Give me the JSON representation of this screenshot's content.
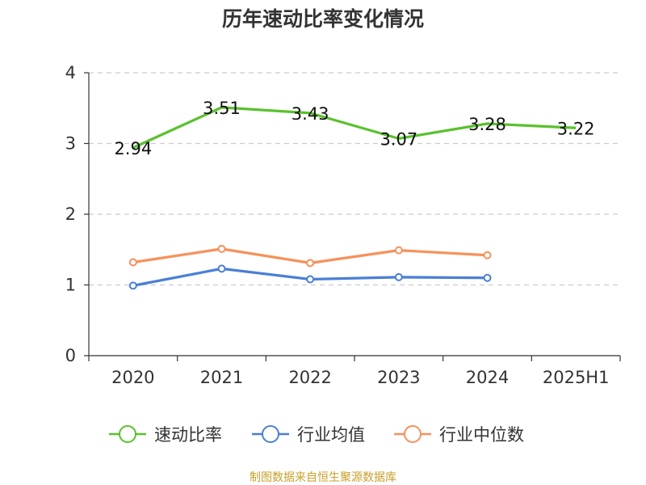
{
  "chart_data": {
    "type": "line",
    "title": "历年速动比率变化情况",
    "categories": [
      "2020",
      "2021",
      "2022",
      "2023",
      "2024",
      "2025H1"
    ],
    "ylim": [
      0,
      4
    ],
    "yticks": [
      "0",
      "1",
      "2",
      "3",
      "4"
    ],
    "grid": true,
    "legend_position": "bottom",
    "series": [
      {
        "name": "速动比率",
        "color": "#5ac12d",
        "values": [
          2.94,
          3.51,
          3.43,
          3.07,
          3.28,
          3.22
        ],
        "labels": [
          "2.94",
          "3.51",
          "3.43",
          "3.07",
          "3.28",
          "3.22"
        ]
      },
      {
        "name": "行业均值",
        "color": "#4a7fd6",
        "values": [
          0.99,
          1.23,
          1.08,
          1.11,
          1.1,
          null
        ]
      },
      {
        "name": "行业中位数",
        "color": "#f7915a",
        "values": [
          1.32,
          1.51,
          1.31,
          1.49,
          1.42,
          null
        ]
      }
    ]
  },
  "source_text": "制图数据来自恒生聚源数据库"
}
